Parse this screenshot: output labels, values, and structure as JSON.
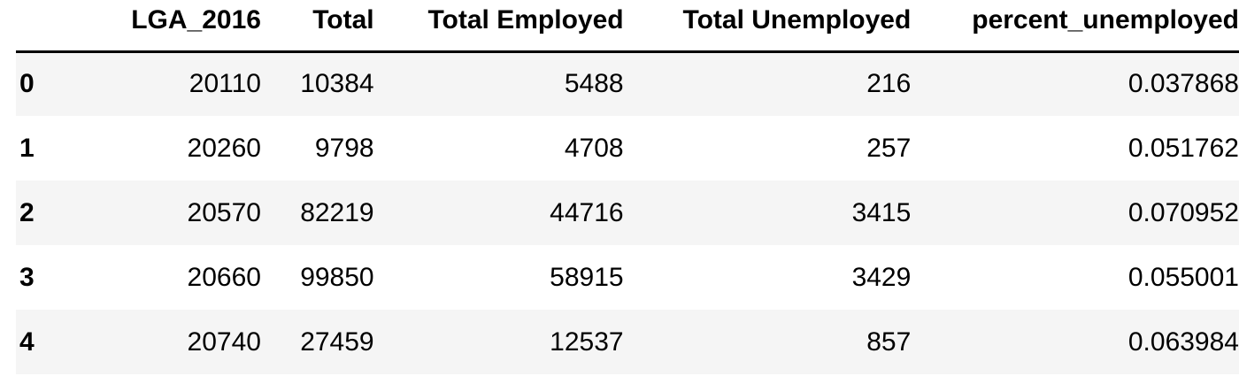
{
  "dataframe": {
    "columns": {
      "index": "",
      "lga": "LGA_2016",
      "total": "Total",
      "employed": "Total Employed",
      "unemployed": "Total Unemployed",
      "percent": "percent_unemployed"
    },
    "rows": [
      {
        "index": "0",
        "lga": "20110",
        "total": "10384",
        "employed": "5488",
        "unemployed": "216",
        "percent": "0.037868"
      },
      {
        "index": "1",
        "lga": "20260",
        "total": "9798",
        "employed": "4708",
        "unemployed": "257",
        "percent": "0.051762"
      },
      {
        "index": "2",
        "lga": "20570",
        "total": "82219",
        "employed": "44716",
        "unemployed": "3415",
        "percent": "0.070952"
      },
      {
        "index": "3",
        "lga": "20660",
        "total": "99850",
        "employed": "58915",
        "unemployed": "3429",
        "percent": "0.055001"
      },
      {
        "index": "4",
        "lga": "20740",
        "total": "27459",
        "employed": "12537",
        "unemployed": "857",
        "percent": "0.063984"
      }
    ],
    "colors": {
      "stripe": "#f5f5f5",
      "background": "#ffffff",
      "header_rule": "#000000",
      "text": "#000000"
    }
  }
}
